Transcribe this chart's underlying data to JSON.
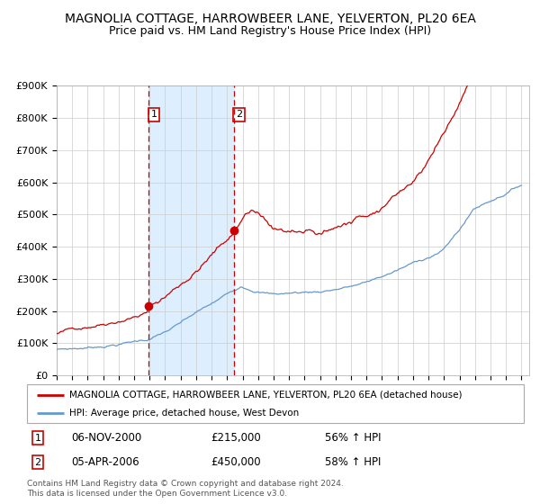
{
  "title": "MAGNOLIA COTTAGE, HARROWBEER LANE, YELVERTON, PL20 6EA",
  "subtitle": "Price paid vs. HM Land Registry's House Price Index (HPI)",
  "red_label": "MAGNOLIA COTTAGE, HARROWBEER LANE, YELVERTON, PL20 6EA (detached house)",
  "blue_label": "HPI: Average price, detached house, West Devon",
  "purchase1_date": "06-NOV-2000",
  "purchase1_price": 215000,
  "purchase1_hpi": "56% ↑ HPI",
  "purchase2_date": "05-APR-2006",
  "purchase2_price": 450000,
  "purchase2_hpi": "58% ↑ HPI",
  "footnote": "Contains HM Land Registry data © Crown copyright and database right 2024.\nThis data is licensed under the Open Government Licence v3.0.",
  "ylim": [
    0,
    900000
  ],
  "xlim_start": 1995,
  "xlim_end": 2025.5,
  "background_color": "#ffffff",
  "grid_color": "#cccccc",
  "red_color": "#cc0000",
  "blue_color": "#6699cc",
  "shade_color": "#ddeeff",
  "dashed_color": "#cc0000",
  "title_fontsize": 10,
  "subtitle_fontsize": 9,
  "tick_fontsize": 7,
  "ytick_fontsize": 8
}
